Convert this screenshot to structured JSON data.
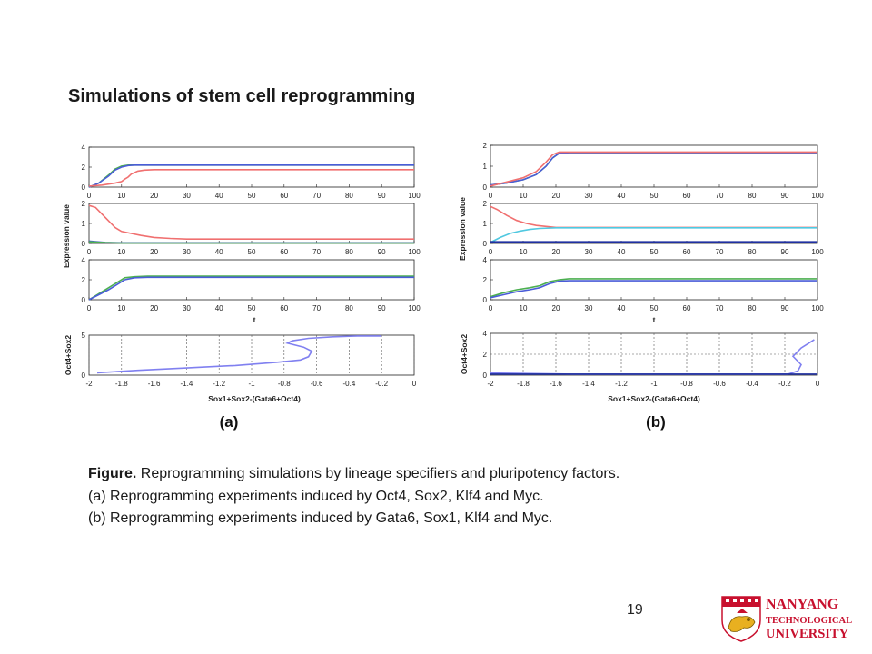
{
  "slide": {
    "title": "Simulations of stem cell reprogramming",
    "page_number": "19"
  },
  "caption": {
    "label": "Figure.",
    "line1_rest": " Reprogramming simulations by lineage specifiers and pluripotency factors.",
    "line2": "(a) Reprogramming experiments induced by Oct4, Sox2, Klf4 and Myc.",
    "line3": "(b) Reprogramming experiments induced by Gata6, Sox1, Klf4 and Myc."
  },
  "logo": {
    "line1": "NANYANG",
    "line2": "TECHNOLOGICAL",
    "line3": "UNIVERSITY",
    "color": "#c8102e"
  },
  "colors": {
    "green": "#4caf50",
    "red": "#f07070",
    "blue": "#4a5cd8",
    "cyan": "#50c8e0",
    "darkblue": "#1a2a80",
    "navy": "#2030a0",
    "purple": "#8080f0"
  },
  "chart_data": [
    {
      "panel": "(a)",
      "type": "line",
      "ylabel": "Expression value",
      "xlabel": "t",
      "time_axis": {
        "xlim": [
          0,
          100
        ],
        "ticks": [
          0,
          10,
          20,
          30,
          40,
          50,
          60,
          70,
          80,
          90,
          100
        ]
      },
      "subplots": [
        {
          "ylim": [
            0,
            4
          ],
          "yticks": [
            0,
            2,
            4
          ],
          "series": [
            {
              "color": "green",
              "x": [
                0,
                3,
                6,
                8,
                10,
                12,
                14,
                17,
                20,
                100
              ],
              "y": [
                0,
                0.4,
                1.2,
                1.8,
                2.1,
                2.2,
                2.2,
                2.2,
                2.2,
                2.2
              ]
            },
            {
              "color": "blue",
              "x": [
                0,
                3,
                6,
                8,
                10,
                12,
                14,
                17,
                20,
                100
              ],
              "y": [
                0,
                0.4,
                1.1,
                1.7,
                2.0,
                2.15,
                2.2,
                2.2,
                2.2,
                2.2
              ]
            },
            {
              "color": "red",
              "x": [
                0,
                4,
                8,
                10,
                11,
                12,
                13,
                15,
                17,
                20,
                100
              ],
              "y": [
                0.1,
                0.2,
                0.4,
                0.55,
                0.8,
                1.0,
                1.3,
                1.6,
                1.7,
                1.75,
                1.75
              ]
            }
          ]
        },
        {
          "ylim": [
            0,
            2
          ],
          "yticks": [
            0,
            1,
            2
          ],
          "series": [
            {
              "color": "red",
              "x": [
                0,
                2,
                5,
                8,
                10,
                13,
                16,
                20,
                25,
                30,
                100
              ],
              "y": [
                1.9,
                1.8,
                1.3,
                0.8,
                0.6,
                0.5,
                0.4,
                0.3,
                0.25,
                0.22,
                0.22
              ]
            },
            {
              "color": "blue",
              "x": [
                0,
                5,
                10,
                100
              ],
              "y": [
                0.12,
                0.05,
                0.03,
                0.03
              ]
            },
            {
              "color": "green",
              "x": [
                0,
                5,
                10,
                100
              ],
              "y": [
                0.08,
                0.04,
                0.02,
                0.02
              ]
            }
          ]
        },
        {
          "ylim": [
            0,
            4
          ],
          "yticks": [
            0,
            2,
            4
          ],
          "series": [
            {
              "color": "green",
              "x": [
                0,
                3,
                6,
                9,
                11,
                14,
                18,
                22,
                100
              ],
              "y": [
                0,
                0.6,
                1.2,
                1.8,
                2.2,
                2.3,
                2.35,
                2.35,
                2.35
              ]
            },
            {
              "color": "blue",
              "x": [
                0,
                3,
                6,
                9,
                11,
                14,
                18,
                22,
                100
              ],
              "y": [
                0,
                0.5,
                1.0,
                1.6,
                2.0,
                2.2,
                2.25,
                2.25,
                2.25
              ]
            }
          ]
        }
      ],
      "phase_plot": {
        "xlabel": "Sox1+Sox2-(Gata6+Oct4)",
        "ylabel": "Oct4+Sox2",
        "xlim": [
          -2,
          0
        ],
        "ylim": [
          0,
          5
        ],
        "xticks": [
          "-2",
          "-1.8",
          "-1.6",
          "-1.4",
          "-1.2",
          "-1",
          "-0.8",
          "-0.6",
          "-0.4",
          "-0.2",
          "0"
        ],
        "yticks": [
          0,
          5
        ],
        "series": [
          {
            "color": "purple",
            "x": [
              -1.95,
              -1.7,
              -1.4,
              -1.1,
              -0.85,
              -0.7,
              -0.65,
              -0.63,
              -0.68,
              -0.78,
              -0.75,
              -0.65,
              -0.5,
              -0.35,
              -0.2
            ],
            "y": [
              0.3,
              0.6,
              0.9,
              1.2,
              1.6,
              1.9,
              2.3,
              3.0,
              3.5,
              4.0,
              4.3,
              4.6,
              4.8,
              4.9,
              4.9
            ]
          }
        ]
      }
    },
    {
      "panel": "(b)",
      "type": "line",
      "ylabel": "Expression value",
      "xlabel": "t",
      "time_axis": {
        "xlim": [
          0,
          100
        ],
        "ticks": [
          0,
          10,
          20,
          30,
          40,
          50,
          60,
          70,
          80,
          90,
          100
        ]
      },
      "subplots": [
        {
          "ylim": [
            0,
            2
          ],
          "yticks": [
            0,
            1,
            2
          ],
          "series": [
            {
              "color": "green",
              "x": [
                0,
                5,
                10,
                14,
                17,
                19,
                21,
                24,
                100
              ],
              "y": [
                0.1,
                0.2,
                0.35,
                0.6,
                1.0,
                1.4,
                1.62,
                1.65,
                1.65
              ]
            },
            {
              "color": "blue",
              "x": [
                0,
                5,
                10,
                14,
                17,
                19,
                21,
                24,
                100
              ],
              "y": [
                0.1,
                0.2,
                0.35,
                0.6,
                1.0,
                1.4,
                1.62,
                1.65,
                1.65
              ]
            },
            {
              "color": "red",
              "x": [
                0,
                5,
                10,
                14,
                17,
                19,
                21,
                24,
                100
              ],
              "y": [
                0.05,
                0.25,
                0.45,
                0.75,
                1.2,
                1.55,
                1.68,
                1.68,
                1.68
              ]
            }
          ]
        },
        {
          "ylim": [
            0,
            2
          ],
          "yticks": [
            0,
            1,
            2
          ],
          "series": [
            {
              "color": "red",
              "x": [
                0,
                2,
                5,
                8,
                11,
                14,
                17,
                20,
                100
              ],
              "y": [
                1.85,
                1.7,
                1.4,
                1.15,
                1.0,
                0.9,
                0.85,
                0.8,
                0.8
              ]
            },
            {
              "color": "cyan",
              "x": [
                0,
                3,
                6,
                9,
                12,
                15,
                20,
                100
              ],
              "y": [
                0.05,
                0.3,
                0.5,
                0.62,
                0.7,
                0.75,
                0.78,
                0.78
              ]
            },
            {
              "color": "darkblue",
              "x": [
                0,
                100
              ],
              "y": [
                0.05,
                0.05
              ]
            },
            {
              "color": "navy",
              "x": [
                0,
                100
              ],
              "y": [
                0.08,
                0.08
              ]
            }
          ]
        },
        {
          "ylim": [
            0,
            4
          ],
          "yticks": [
            0,
            2,
            4
          ],
          "series": [
            {
              "color": "green",
              "x": [
                0,
                4,
                8,
                12,
                15,
                18,
                21,
                24,
                100
              ],
              "y": [
                0.3,
                0.7,
                1.0,
                1.2,
                1.4,
                1.8,
                2.0,
                2.1,
                2.1
              ]
            },
            {
              "color": "blue",
              "x": [
                0,
                4,
                8,
                12,
                15,
                18,
                21,
                24,
                100
              ],
              "y": [
                0.2,
                0.5,
                0.8,
                1.0,
                1.2,
                1.6,
                1.85,
                1.9,
                1.9
              ]
            }
          ]
        }
      ],
      "phase_plot": {
        "xlabel": "Sox1+Sox2-(Gata6+Oct4)",
        "ylabel": "Oct4+Sox2",
        "xlim": [
          -2,
          0
        ],
        "ylim": [
          0,
          4
        ],
        "xticks": [
          "-2",
          "-1.8",
          "-1.6",
          "-1.4",
          "-1.2",
          "-1",
          "-0.8",
          "-0.6",
          "-0.4",
          "-0.2",
          "0"
        ],
        "yticks": [
          0,
          2,
          4
        ],
        "series": [
          {
            "color": "purple",
            "x": [
              -2,
              -1.5,
              -1,
              -0.5,
              -0.18,
              -0.12,
              -0.1,
              -0.15,
              -0.1,
              -0.05,
              -0.02
            ],
            "y": [
              0.2,
              0.1,
              0.1,
              0.1,
              0.1,
              0.4,
              1.0,
              1.8,
              2.6,
              3.1,
              3.4
            ]
          },
          {
            "color": "navy",
            "x": [
              -2,
              0
            ],
            "y": [
              0.1,
              0.1
            ]
          }
        ]
      }
    }
  ]
}
